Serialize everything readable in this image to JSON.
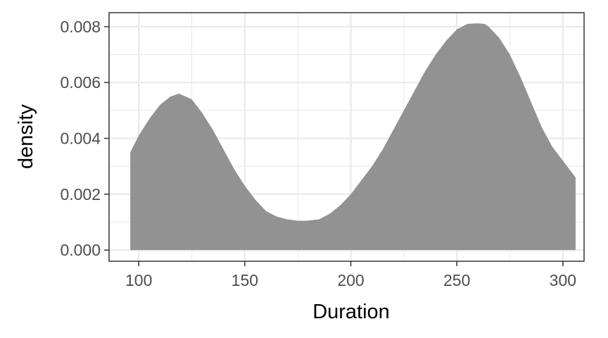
{
  "chart_data": {
    "type": "area",
    "title": "",
    "xlabel": "Duration",
    "ylabel": "density",
    "xlim": [
      86,
      310
    ],
    "ylim": [
      -0.0004,
      0.0085
    ],
    "x_ticks": [
      100,
      150,
      200,
      250,
      300
    ],
    "x_tick_labels": [
      "100",
      "150",
      "200",
      "250",
      "300"
    ],
    "y_ticks": [
      0,
      0.002,
      0.004,
      0.006,
      0.008
    ],
    "y_tick_labels": [
      "0.000",
      "0.002",
      "0.004",
      "0.006",
      "0.008"
    ],
    "grid": true,
    "legend": "none",
    "fill_color": "#8c8c8c",
    "series": [
      {
        "x": [
          96,
          100,
          105,
          110,
          115,
          119,
          125,
          130,
          135,
          140,
          145,
          150,
          155,
          160,
          165,
          170,
          175,
          179,
          185,
          190,
          195,
          200,
          205,
          210,
          215,
          220,
          225,
          230,
          235,
          240,
          245,
          250,
          255,
          260,
          263,
          265,
          270,
          275,
          280,
          285,
          290,
          295,
          300,
          306
        ],
        "values": [
          0.0035,
          0.0041,
          0.0047,
          0.0052,
          0.0055,
          0.0056,
          0.0054,
          0.0049,
          0.0043,
          0.0036,
          0.0029,
          0.0023,
          0.0018,
          0.0014,
          0.0012,
          0.0011,
          0.00105,
          0.00105,
          0.0011,
          0.0013,
          0.0016,
          0.002,
          0.0025,
          0.003,
          0.0036,
          0.0043,
          0.005,
          0.0057,
          0.0064,
          0.007,
          0.0075,
          0.0079,
          0.0081,
          0.00812,
          0.0081,
          0.008,
          0.0076,
          0.007,
          0.0062,
          0.0053,
          0.0044,
          0.0037,
          0.0032,
          0.0026
        ]
      }
    ]
  }
}
